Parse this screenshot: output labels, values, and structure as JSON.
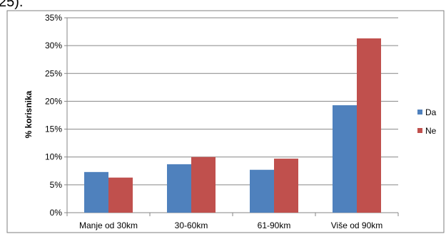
{
  "page": {
    "cropped_top_text": "25)."
  },
  "chart_data": {
    "type": "bar",
    "title": "",
    "xlabel": "",
    "ylabel": "% korisnika",
    "categories": [
      "Manje od 30km",
      "30-60km",
      "61-90km",
      "Više od 90km"
    ],
    "series": [
      {
        "name": "Da",
        "color": "#4F81BD",
        "values": [
          7.3,
          8.7,
          7.7,
          19.3
        ]
      },
      {
        "name": "Ne",
        "color": "#C0504D",
        "values": [
          6.3,
          10.0,
          9.7,
          31.3
        ]
      }
    ],
    "ylim": [
      0,
      35
    ],
    "yticks": [
      0,
      5,
      10,
      15,
      20,
      25,
      30,
      35
    ],
    "ytick_labels": [
      "0%",
      "5%",
      "10%",
      "15%",
      "20%",
      "25%",
      "30%",
      "35%"
    ],
    "grid": true,
    "legend_position": "right"
  }
}
